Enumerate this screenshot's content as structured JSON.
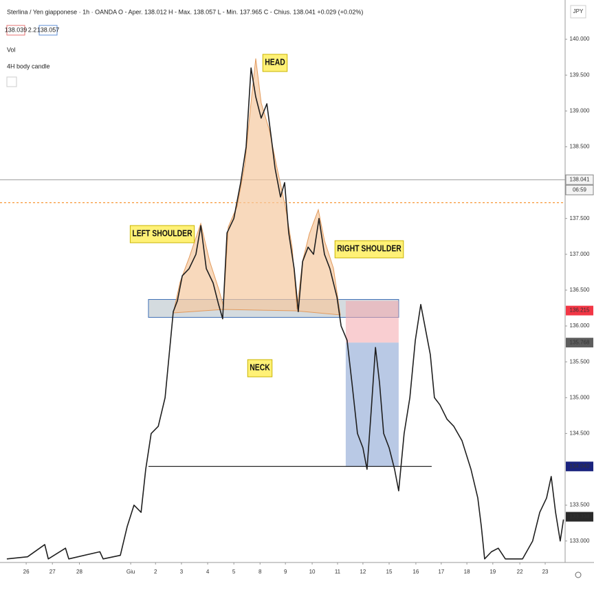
{
  "chart_data": {
    "type": "line",
    "symbol": "Sterlina / Yen giapponese · 1h · OANDA",
    "ohlc": "O - Aper. 138.012  H - Max. 138.057  L - Min. 137.965  C - Chius. 138.041  +0.029 (+0.02%)",
    "bid": "138.039",
    "spread": "2.2",
    "ask": "138.057",
    "indicators": [
      "Vol",
      "4H body candle"
    ],
    "currency": "JPY",
    "countdown": "06:59",
    "xlim": [
      -0.96,
      19.75
    ],
    "ylim": [
      132.7,
      140.5
    ],
    "xticks": [
      {
        "value": 0,
        "label": "26"
      },
      {
        "value": 0.96,
        "label": "27"
      },
      {
        "value": 1.95,
        "label": "28"
      },
      {
        "value": 3.83,
        "label": "Giu"
      },
      {
        "value": 4.74,
        "label": "2"
      },
      {
        "value": 5.69,
        "label": "3"
      },
      {
        "value": 6.65,
        "label": "4"
      },
      {
        "value": 7.61,
        "label": "5"
      },
      {
        "value": 8.57,
        "label": "8"
      },
      {
        "value": 9.5,
        "label": "9"
      },
      {
        "value": 10.48,
        "label": "10"
      },
      {
        "value": 11.41,
        "label": "11"
      },
      {
        "value": 12.34,
        "label": "12"
      },
      {
        "value": 13.3,
        "label": "15"
      },
      {
        "value": 14.28,
        "label": "16"
      },
      {
        "value": 15.21,
        "label": "17"
      },
      {
        "value": 16.15,
        "label": "18"
      },
      {
        "value": 17.1,
        "label": "19"
      },
      {
        "value": 18.09,
        "label": "22"
      },
      {
        "value": 19.02,
        "label": "23"
      }
    ],
    "yticks": [
      {
        "value": 140,
        "label": "140.000"
      },
      {
        "value": 139.5,
        "label": "139.500"
      },
      {
        "value": 139,
        "label": "139.000"
      },
      {
        "value": 138.5,
        "label": "138.500"
      },
      {
        "value": 137.5,
        "label": "137.500"
      },
      {
        "value": 137,
        "label": "137.000"
      },
      {
        "value": 136.5,
        "label": "136.500"
      },
      {
        "value": 136,
        "label": "136.000"
      },
      {
        "value": 135.5,
        "label": "135.500"
      },
      {
        "value": 135,
        "label": "135.000"
      },
      {
        "value": 134.5,
        "label": "134.500"
      },
      {
        "value": 133.5,
        "label": "133.500"
      },
      {
        "value": 133,
        "label": "133.000"
      }
    ],
    "series": [
      {
        "color": "#1e1e1e",
        "x": [
          -0.71,
          0.05,
          0.68,
          0.81,
          1.44,
          1.56,
          2.7,
          2.82,
          3.45,
          3.7,
          3.95,
          4.21,
          4.38,
          4.58,
          4.84,
          5.09,
          5.29,
          5.39,
          5.54,
          5.72,
          5.97,
          6.22,
          6.4,
          6.6,
          6.85,
          7.05,
          7.2,
          7.36,
          7.61,
          7.86,
          8.06,
          8.24,
          8.41,
          8.61,
          8.82,
          8.99,
          9.12,
          9.32,
          9.47,
          9.62,
          9.82,
          9.97,
          10.13,
          10.33,
          10.53,
          10.73,
          10.93,
          11.13,
          11.39,
          11.54,
          11.76,
          11.94,
          12.14,
          12.34,
          12.49,
          12.64,
          12.8,
          12.95,
          13.1,
          13.3,
          13.5,
          13.65,
          13.85,
          14.06,
          14.26,
          14.46,
          14.66,
          14.81,
          14.96,
          15.16,
          15.42,
          15.67,
          15.97,
          16.3,
          16.55,
          16.68,
          16.8,
          17.05,
          17.3,
          17.56,
          18.19,
          18.56,
          18.82,
          19.07,
          19.24,
          19.4,
          19.57,
          19.69
        ],
        "values": [
          132.75,
          132.78,
          132.95,
          132.75,
          132.9,
          132.75,
          132.85,
          132.75,
          132.8,
          133.2,
          133.5,
          133.4,
          134.0,
          134.5,
          134.6,
          135.0,
          135.8,
          136.2,
          136.35,
          136.7,
          136.8,
          137.0,
          137.4,
          136.8,
          136.6,
          136.3,
          136.1,
          137.3,
          137.5,
          138.0,
          138.5,
          139.6,
          139.2,
          138.9,
          139.1,
          138.6,
          138.2,
          137.8,
          138.0,
          137.3,
          136.8,
          136.2,
          136.9,
          137.1,
          137.0,
          137.5,
          137.0,
          136.8,
          136.4,
          136.0,
          135.8,
          135.2,
          134.5,
          134.3,
          134.0,
          134.8,
          135.7,
          135.2,
          134.5,
          134.3,
          134.0,
          133.7,
          134.5,
          135.0,
          135.8,
          136.3,
          135.9,
          135.6,
          135.0,
          134.9,
          134.7,
          134.6,
          134.4,
          134.0,
          133.6,
          133.2,
          132.75,
          132.85,
          132.9,
          132.75,
          132.75,
          133.0,
          133.4,
          133.6,
          133.9,
          133.4,
          133.0,
          133.3
        ]
      }
    ],
    "price_labels": [
      {
        "value": 138.041,
        "label": "138.041",
        "color": "#f4f4f4"
      },
      {
        "value": 136.215,
        "label": "136.215",
        "color": "#f23645"
      },
      {
        "value": 135.768,
        "label": "135.768",
        "color": "#5d5d5d"
      },
      {
        "value": 134.04,
        "label": "134.040",
        "color": "#1a237e"
      },
      {
        "value": 133.338,
        "label": "133.338",
        "color": "#2a2a2a"
      }
    ],
    "reference_line": {
      "value": 137.72,
      "color": "#f57c00"
    },
    "zones": [
      {
        "x": [
          4.48,
          13.65
        ],
        "y": [
          136.12,
          136.37
        ],
        "color": "#b0bec5"
      },
      {
        "x": [
          11.71,
          13.65
        ],
        "y": [
          135.768,
          136.35
        ],
        "color": "#f4a6ac"
      },
      {
        "x": [
          11.71,
          13.65
        ],
        "y": [
          134.04,
          135.768
        ],
        "color": "#7f9dd0"
      }
    ],
    "neck_line": {
      "x": [
        4.48,
        14.86
      ],
      "value": 134.04
    },
    "annotations": [
      "HEAD",
      "LEFT SHOULDER",
      "RIGHT SHOULDER",
      "NECK"
    ]
  }
}
